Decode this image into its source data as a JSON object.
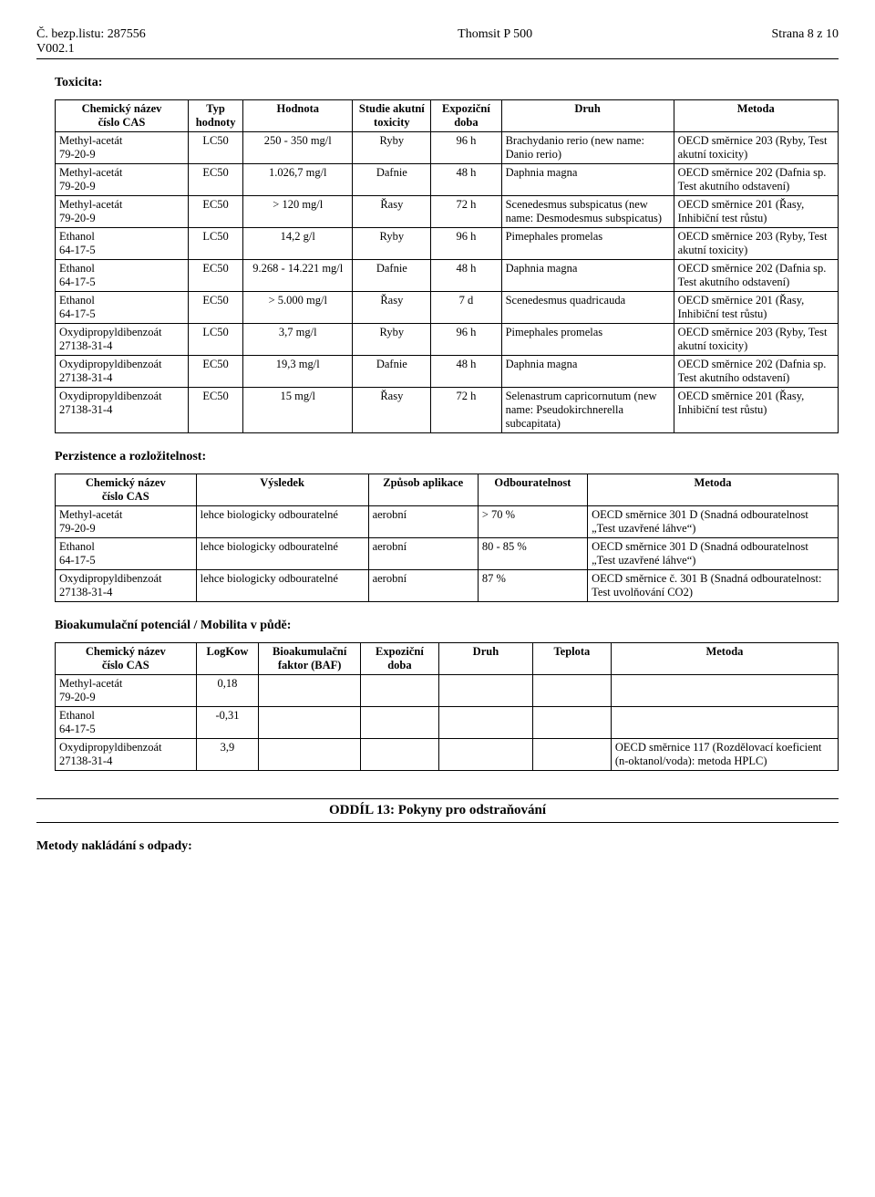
{
  "header": {
    "doc_no": "Č. bezp.listu: 287556",
    "product": "Thomsit P 500",
    "page": "Strana 8 z 10",
    "version": "V002.1"
  },
  "toxicity_title": "Toxicita:",
  "tox_headers": {
    "c0": "Chemický název\nčíslo CAS",
    "c1": "Typ hodnoty",
    "c2": "Hodnota",
    "c3": "Studie akutní toxicity",
    "c4": "Expoziční doba",
    "c5": "Druh",
    "c6": "Metoda"
  },
  "tox_rows": [
    {
      "c0": "Methyl-acetát\n79-20-9",
      "c1": "LC50",
      "c2": "250 - 350 mg/l",
      "c3": "Ryby",
      "c4": "96 h",
      "c5": "Brachydanio rerio (new name: Danio rerio)",
      "c6": "OECD směrnice 203 (Ryby, Test akutní toxicity)"
    },
    {
      "c0": "Methyl-acetát\n79-20-9",
      "c1": "EC50",
      "c2": "1.026,7 mg/l",
      "c3": "Dafnie",
      "c4": "48 h",
      "c5": "Daphnia magna",
      "c6": "OECD směrnice 202 (Dafnia sp. Test akutního odstavení)"
    },
    {
      "c0": "Methyl-acetát\n79-20-9",
      "c1": "EC50",
      "c2": "> 120 mg/l",
      "c3": "Řasy",
      "c4": "72 h",
      "c5": "Scenedesmus subspicatus (new name: Desmodesmus subspicatus)",
      "c6": "OECD směrnice 201 (Řasy, Inhibiční test růstu)"
    },
    {
      "c0": "Ethanol\n64-17-5",
      "c1": "LC50",
      "c2": "14,2 g/l",
      "c3": "Ryby",
      "c4": "96 h",
      "c5": "Pimephales promelas",
      "c6": "OECD směrnice 203 (Ryby, Test akutní toxicity)"
    },
    {
      "c0": "Ethanol\n64-17-5",
      "c1": "EC50",
      "c2": "9.268 - 14.221 mg/l",
      "c3": "Dafnie",
      "c4": "48 h",
      "c5": "Daphnia magna",
      "c6": "OECD směrnice 202 (Dafnia sp. Test akutního odstavení)"
    },
    {
      "c0": "Ethanol\n64-17-5",
      "c1": "EC50",
      "c2": "> 5.000 mg/l",
      "c3": "Řasy",
      "c4": "7 d",
      "c5": "Scenedesmus quadricauda",
      "c6": "OECD směrnice 201 (Řasy, Inhibiční test růstu)"
    },
    {
      "c0": "Oxydipropyldibenzoát\n27138-31-4",
      "c1": "LC50",
      "c2": "3,7 mg/l",
      "c3": "Ryby",
      "c4": "96 h",
      "c5": "Pimephales promelas",
      "c6": "OECD směrnice 203 (Ryby, Test akutní toxicity)"
    },
    {
      "c0": "Oxydipropyldibenzoát\n27138-31-4",
      "c1": "EC50",
      "c2": "19,3 mg/l",
      "c3": "Dafnie",
      "c4": "48 h",
      "c5": "Daphnia magna",
      "c6": "OECD směrnice 202 (Dafnia sp. Test akutního odstavení)"
    },
    {
      "c0": "Oxydipropyldibenzoát\n27138-31-4",
      "c1": "EC50",
      "c2": "15 mg/l",
      "c3": "Řasy",
      "c4": "72 h",
      "c5": "Selenastrum capricornutum (new name: Pseudokirchnerella subcapitata)",
      "c6": "OECD směrnice 201 (Řasy, Inhibiční test růstu)"
    }
  ],
  "persist_title": "Perzistence a rozložitelnost:",
  "persist_headers": {
    "c0": "Chemický název\nčíslo CAS",
    "c1": "Výsledek",
    "c2": "Způsob aplikace",
    "c3": "Odbouratelnost",
    "c4": "Metoda"
  },
  "persist_rows": [
    {
      "c0": "Methyl-acetát\n79-20-9",
      "c1": "lehce biologicky odbouratelné",
      "c2": "aerobní",
      "c3": "> 70 %",
      "c4": "OECD směrnice 301 D (Snadná odbouratelnost „Test uzavřené láhve“)"
    },
    {
      "c0": "Ethanol\n64-17-5",
      "c1": "lehce biologicky odbouratelné",
      "c2": "aerobní",
      "c3": "80 - 85 %",
      "c4": "OECD směrnice 301 D (Snadná odbouratelnost „Test uzavřené láhve“)"
    },
    {
      "c0": "Oxydipropyldibenzoát\n27138-31-4",
      "c1": "lehce biologicky odbouratelné",
      "c2": "aerobní",
      "c3": "87 %",
      "c4": "OECD směrnice č. 301 B (Snadná odbouratelnost: Test uvolňování CO2)"
    }
  ],
  "bioacc_title": "Bioakumulační potenciál / Mobilita v půdě:",
  "bioacc_headers": {
    "c0": "Chemický název\nčíslo CAS",
    "c1": "LogKow",
    "c2": "Bioakumulační faktor (BAF)",
    "c3": "Expoziční doba",
    "c4": "Druh",
    "c5": "Teplota",
    "c6": "Metoda"
  },
  "bioacc_rows": [
    {
      "c0": "Methyl-acetát\n79-20-9",
      "c1": "0,18",
      "c2": "",
      "c3": "",
      "c4": "",
      "c5": "",
      "c6": ""
    },
    {
      "c0": "Ethanol\n64-17-5",
      "c1": "-0,31",
      "c2": "",
      "c3": "",
      "c4": "",
      "c5": "",
      "c6": ""
    },
    {
      "c0": "Oxydipropyldibenzoát\n27138-31-4",
      "c1": "3,9",
      "c2": "",
      "c3": "",
      "c4": "",
      "c5": "",
      "c6": "OECD směrnice 117 (Rozdělovací koeficient (n-oktanol/voda): metoda HPLC)"
    }
  ],
  "section13": "ODDÍL 13: Pokyny pro odstraňování",
  "waste_methods": "Metody nakládání s odpady:",
  "col_widths": {
    "tox": [
      "17%",
      "7%",
      "14%",
      "10%",
      "9%",
      "22%",
      "21%"
    ],
    "persist": [
      "18%",
      "22%",
      "14%",
      "14%",
      "32%"
    ],
    "bioacc": [
      "18%",
      "8%",
      "13%",
      "10%",
      "12%",
      "10%",
      "29%"
    ]
  }
}
